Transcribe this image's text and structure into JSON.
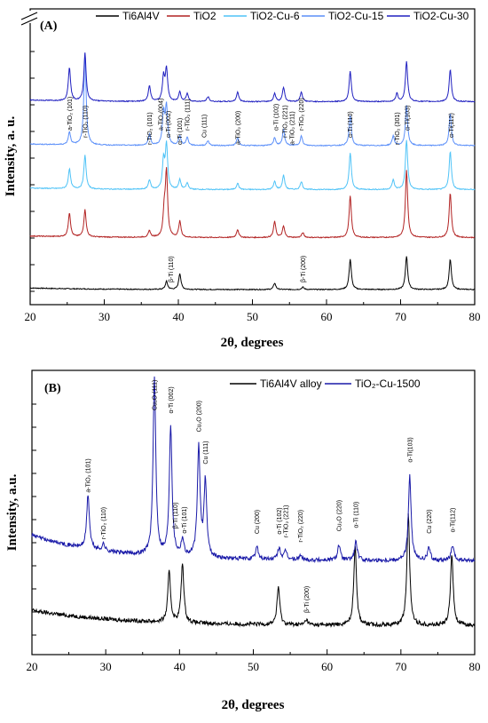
{
  "chart_data": [
    {
      "type": "line",
      "panel_label": "(A)",
      "xlabel": "2θ, degrees",
      "ylabel": "Intensity, a. u.",
      "xlim": [
        20,
        80
      ],
      "xticks": [
        20,
        30,
        40,
        50,
        60,
        70,
        80
      ],
      "y_break": true,
      "legend_position": "top",
      "series": [
        {
          "name": "Ti6Al4V",
          "color": "#000000",
          "offset": 0,
          "peaks": [
            [
              38.4,
              10
            ],
            [
              40.2,
              20
            ],
            [
              53.0,
              8
            ],
            [
              56.8,
              3
            ],
            [
              63.2,
              38
            ],
            [
              70.8,
              42
            ],
            [
              76.7,
              38
            ]
          ]
        },
        {
          "name": "TiO2",
          "color": "#b22222",
          "offset": 65,
          "peaks": [
            [
              25.3,
              30
            ],
            [
              27.4,
              34
            ],
            [
              36.1,
              8
            ],
            [
              38.1,
              30
            ],
            [
              38.4,
              80
            ],
            [
              40.2,
              20
            ],
            [
              48.0,
              10
            ],
            [
              53.0,
              20
            ],
            [
              54.2,
              14
            ],
            [
              56.8,
              6
            ],
            [
              63.2,
              52
            ],
            [
              70.8,
              85
            ],
            [
              76.7,
              56
            ]
          ]
        },
        {
          "name": "TiO2-Cu-6",
          "color": "#4fc3f7",
          "offset": 125,
          "peaks": [
            [
              25.3,
              25
            ],
            [
              27.4,
              42
            ],
            [
              36.1,
              12
            ],
            [
              38.0,
              35
            ],
            [
              38.4,
              55
            ],
            [
              40.2,
              12
            ],
            [
              41.2,
              8
            ],
            [
              48.0,
              8
            ],
            [
              53.0,
              10
            ],
            [
              54.2,
              18
            ],
            [
              56.6,
              10
            ],
            [
              63.2,
              46
            ],
            [
              69.0,
              12
            ],
            [
              70.8,
              62
            ],
            [
              76.7,
              48
            ]
          ]
        },
        {
          "name": "TiO2-Cu-15",
          "color": "#5b8ff9",
          "offset": 180,
          "peaks": [
            [
              25.3,
              16
            ],
            [
              27.4,
              115
            ],
            [
              36.1,
              14
            ],
            [
              38.0,
              40
            ],
            [
              38.4,
              48
            ],
            [
              40.2,
              12
            ],
            [
              41.2,
              10
            ],
            [
              44.0,
              6
            ],
            [
              48.0,
              10
            ],
            [
              53.0,
              10
            ],
            [
              54.2,
              20
            ],
            [
              56.6,
              12
            ],
            [
              63.2,
              38
            ],
            [
              69.0,
              12
            ],
            [
              70.8,
              50
            ],
            [
              76.7,
              40
            ]
          ]
        },
        {
          "name": "TiO2-Cu-30",
          "color": "#2020c0",
          "offset": 235,
          "peaks": [
            [
              25.3,
              42
            ],
            [
              27.4,
              60
            ],
            [
              36.1,
              20
            ],
            [
              38.0,
              30
            ],
            [
              38.4,
              40
            ],
            [
              40.2,
              12
            ],
            [
              41.2,
              10
            ],
            [
              44.0,
              6
            ],
            [
              48.0,
              12
            ],
            [
              53.0,
              10
            ],
            [
              54.2,
              18
            ],
            [
              56.6,
              12
            ],
            [
              63.2,
              38
            ],
            [
              69.5,
              10
            ],
            [
              70.8,
              50
            ],
            [
              76.7,
              40
            ]
          ]
        }
      ],
      "annotations": [
        {
          "text": "a-TiO₂ (101)",
          "x": 25.3
        },
        {
          "text": "r-TiO₂ (110)",
          "x": 27.4
        },
        {
          "text": "r-TiO₂ (101)",
          "x": 36.1
        },
        {
          "text": "a-TiO₂(004)",
          "x": 37.6
        },
        {
          "text": "α-Ti (002)",
          "x": 38.6
        },
        {
          "text": "α-Ti (101)",
          "x": 40.2
        },
        {
          "text": "r-TiO₂ (111)",
          "x": 41.2
        },
        {
          "text": "Cu (111)",
          "x": 43.5
        },
        {
          "text": "a-TiO₂ (200)",
          "x": 48.0
        },
        {
          "text": "α-Ti (102)",
          "x": 53.2
        },
        {
          "text": "r-TiO₂ (221)",
          "x": 54.4
        },
        {
          "text": "a-TiO₂ (211)",
          "x": 55.3
        },
        {
          "text": "r-TiO₂ (220)",
          "x": 56.6
        },
        {
          "text": "α-Ti (110)",
          "x": 63.2
        },
        {
          "text": "r-TiO₂ (301)",
          "x": 69.5
        },
        {
          "text": "α-Ti(103)",
          "x": 70.9
        },
        {
          "text": "α-Ti(112)",
          "x": 76.8
        },
        {
          "text": "β-Ti (110)",
          "x": 39.0,
          "low": true
        },
        {
          "text": "β-Ti (200)",
          "x": 56.8,
          "low": true
        }
      ]
    },
    {
      "type": "line",
      "panel_label": "(B)",
      "xlabel": "2θ, degrees",
      "ylabel": "Intensity, a.u.",
      "xlim": [
        20,
        80
      ],
      "xticks": [
        20,
        30,
        40,
        50,
        60,
        70,
        80
      ],
      "legend_position": "top-right",
      "series": [
        {
          "name": "Ti6Al4V alloy",
          "color": "#000000",
          "offset": 0,
          "peaks": [
            [
              38.6,
              60
            ],
            [
              40.4,
              70
            ],
            [
              53.4,
              45
            ],
            [
              57.2,
              6
            ],
            [
              63.8,
              95
            ],
            [
              71.0,
              132
            ],
            [
              76.9,
              85
            ]
          ]
        },
        {
          "name": "TiO₂-Cu-1500",
          "color": "#1a1aa8",
          "offset": 75,
          "peaks": [
            [
              27.6,
              64
            ],
            [
              29.7,
              8
            ],
            [
              36.6,
              210
            ],
            [
              38.8,
              155
            ],
            [
              40.4,
              20
            ],
            [
              42.6,
              130
            ],
            [
              43.5,
              90
            ],
            [
              50.5,
              15
            ],
            [
              53.5,
              14
            ],
            [
              54.4,
              10
            ],
            [
              56.4,
              5
            ],
            [
              61.6,
              18
            ],
            [
              63.9,
              22
            ],
            [
              71.2,
              100
            ],
            [
              73.8,
              15
            ],
            [
              77.0,
              17
            ]
          ]
        }
      ],
      "annotations": [
        {
          "text": "a-TiO₂ (101)",
          "x": 27.6
        },
        {
          "text": "r-TiO₂ (110)",
          "x": 29.7
        },
        {
          "text": "Cu₂O (111)",
          "x": 36.6
        },
        {
          "text": "α-Ti (002)",
          "x": 38.8
        },
        {
          "text": "β-Ti (110)",
          "x": 39.4
        },
        {
          "text": "α-Ti (101)",
          "x": 40.6
        },
        {
          "text": "Cu₂O (200)",
          "x": 42.6
        },
        {
          "text": "Cu (111)",
          "x": 43.5
        },
        {
          "text": "Cu (200)",
          "x": 50.5
        },
        {
          "text": "α-Ti (102)",
          "x": 53.5
        },
        {
          "text": "r-TiO₂ (221)",
          "x": 54.4
        },
        {
          "text": "r-TiO₂ (220)",
          "x": 56.4
        },
        {
          "text": "β-Ti (200)",
          "x": 57.2,
          "low": true
        },
        {
          "text": "Cu₂O (220)",
          "x": 61.6
        },
        {
          "text": "α-Ti (110)",
          "x": 63.9
        },
        {
          "text": "α-Ti(103)",
          "x": 71.2
        },
        {
          "text": "Cu (220)",
          "x": 73.8
        },
        {
          "text": "α-Ti(112)",
          "x": 77.0
        }
      ]
    }
  ]
}
